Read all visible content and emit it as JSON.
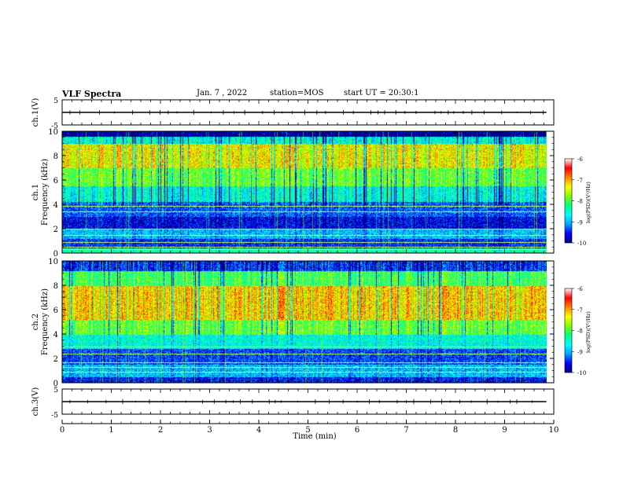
{
  "header": {
    "title": "VLF Spectra",
    "date": "Jan. 7 , 2022",
    "station": "station=MOS",
    "start": "start UT = 20:30:1"
  },
  "colors": {
    "scale": [
      "#000080",
      "#0000ff",
      "#00a0ff",
      "#00ffff",
      "#00ff80",
      "#80ff00",
      "#ffff00",
      "#ff8000",
      "#ff0000",
      "#ffffff"
    ],
    "trace": "#000000"
  },
  "chart_data": [
    {
      "type": "line",
      "name": "ch1-waveform",
      "ylabel": "ch.1(V)",
      "ylim": [
        -5,
        5
      ],
      "yticks": [
        "5",
        "-5"
      ],
      "x": [
        0,
        9.85
      ],
      "y": [
        0,
        0
      ]
    },
    {
      "type": "heatmap",
      "name": "ch1-spectrogram",
      "ylabel": "ch.1 Frequency (kHz)",
      "ylim": [
        0,
        10
      ],
      "yticks": [
        "0",
        "2",
        "4",
        "6",
        "8",
        "10"
      ],
      "xlim": [
        0,
        10
      ],
      "data_xmax": 9.85,
      "colorbar": {
        "ticks": [
          "-6",
          "-7",
          "-8",
          "-9",
          "-10"
        ],
        "label": "log(PSD)(V²/Hz)",
        "range": [
          -10,
          -6
        ]
      },
      "bands": [
        {
          "f0": 0.0,
          "f1": 0.4,
          "v": -8.2
        },
        {
          "f0": 0.4,
          "f1": 1.2,
          "v": -9.4
        },
        {
          "f0": 1.2,
          "f1": 2.0,
          "v": -8.8
        },
        {
          "f0": 2.0,
          "f1": 3.0,
          "v": -9.6
        },
        {
          "f0": 3.0,
          "f1": 4.2,
          "v": -9.2
        },
        {
          "f0": 4.2,
          "f1": 5.5,
          "v": -8.4
        },
        {
          "f0": 5.5,
          "f1": 7.0,
          "v": -7.6
        },
        {
          "f0": 7.0,
          "f1": 9.0,
          "v": -7.0
        },
        {
          "f0": 9.0,
          "f1": 9.6,
          "v": -8.4
        },
        {
          "f0": 9.6,
          "f1": 10.0,
          "v": -10.0
        }
      ],
      "lines_khz": [
        0.3,
        0.5,
        0.9,
        1.5,
        2.0,
        3.4,
        3.9
      ]
    },
    {
      "type": "heatmap",
      "name": "ch2-spectrogram",
      "ylabel": "ch.2 Frequency (kHz)",
      "ylim": [
        0,
        10
      ],
      "yticks": [
        "0",
        "2",
        "4",
        "6",
        "8",
        "10"
      ],
      "xlim": [
        0,
        10
      ],
      "data_xmax": 9.85,
      "colorbar": {
        "ticks": [
          "-6",
          "-7",
          "-8",
          "-9",
          "-10"
        ],
        "label": "log(PSD)(V²/Hz)",
        "range": [
          -10,
          -6
        ]
      },
      "bands": [
        {
          "f0": 0.0,
          "f1": 0.5,
          "v": -9.5
        },
        {
          "f0": 0.5,
          "f1": 1.5,
          "v": -8.8
        },
        {
          "f0": 1.5,
          "f1": 2.8,
          "v": -9.3
        },
        {
          "f0": 2.8,
          "f1": 4.0,
          "v": -8.4
        },
        {
          "f0": 4.0,
          "f1": 5.2,
          "v": -7.6
        },
        {
          "f0": 5.2,
          "f1": 8.0,
          "v": -6.8
        },
        {
          "f0": 8.0,
          "f1": 9.2,
          "v": -7.8
        },
        {
          "f0": 9.2,
          "f1": 10.0,
          "v": -9.4
        }
      ],
      "lines_khz": [
        0.9,
        1.3,
        1.7,
        2.4,
        3.0
      ]
    },
    {
      "type": "line",
      "name": "ch3-waveform",
      "ylabel": "ch.3(V)",
      "ylim": [
        -5,
        5
      ],
      "yticks": [
        "5",
        "-5"
      ],
      "x": [
        0,
        9.85
      ],
      "y": [
        0,
        0
      ]
    }
  ],
  "xaxis": {
    "label": "Time (min)",
    "ticks": [
      "0",
      "1",
      "2",
      "3",
      "4",
      "5",
      "6",
      "7",
      "8",
      "9",
      "10"
    ],
    "range": [
      0,
      10
    ]
  }
}
